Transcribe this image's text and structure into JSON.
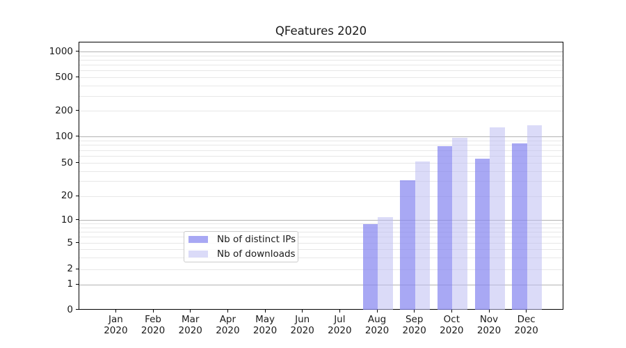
{
  "chart_data": {
    "type": "bar",
    "title": "QFeatures 2020",
    "categories": [
      "Jan",
      "Feb",
      "Mar",
      "Apr",
      "May",
      "Jun",
      "Jul",
      "Aug",
      "Sep",
      "Oct",
      "Nov",
      "Dec"
    ],
    "category_year": "2020",
    "series": [
      {
        "name": "Nb of distinct IPs",
        "color": "rgba(134,134,240,0.72)",
        "values": [
          0,
          0,
          0,
          0,
          0,
          0,
          0,
          9,
          31,
          78,
          56,
          84
        ]
      },
      {
        "name": "Nb of downloads",
        "color": "rgba(190,190,242,0.55)",
        "values": [
          0,
          0,
          0,
          0,
          0,
          0,
          0,
          11,
          52,
          97,
          128,
          137
        ]
      }
    ],
    "y_axis": {
      "scale": "symlog",
      "tick_labels": [
        "0",
        "1",
        "2",
        "5",
        "10",
        "20",
        "50",
        "100",
        "200",
        "500",
        "1000"
      ],
      "tick_values": [
        0,
        1,
        2,
        5,
        10,
        20,
        50,
        100,
        200,
        500,
        1000
      ],
      "major_grid_values": [
        1,
        10,
        100,
        1000
      ],
      "minor_grid_values": [
        3,
        4,
        6,
        7,
        8,
        9,
        30,
        40,
        60,
        70,
        80,
        90,
        300,
        400,
        600,
        700,
        800,
        900
      ],
      "ylim": [
        0,
        1300
      ]
    },
    "legend": {
      "position": "lower center",
      "entries": [
        "Nb of distinct IPs",
        "Nb of downloads"
      ]
    },
    "grid": true,
    "colors": {
      "major_grid": "#b2b2b2",
      "minor_grid": "#e7e7e7",
      "axis": "#000000",
      "text": "#1a1a1a",
      "background": "#ffffff"
    }
  }
}
